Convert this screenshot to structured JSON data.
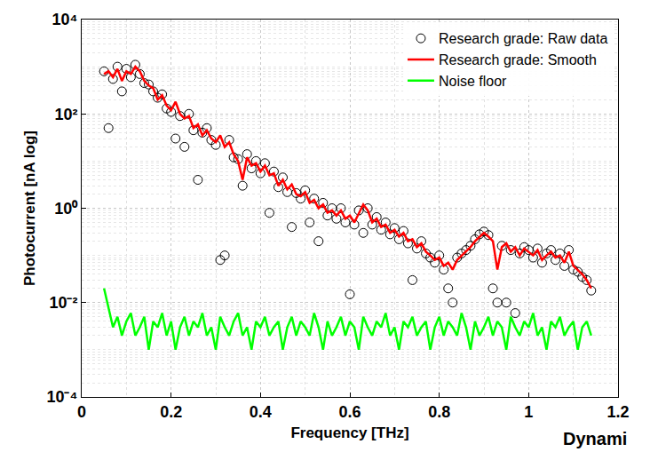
{
  "chart_data": {
    "type": "line",
    "x_label": "Frequency [THz]",
    "y_label": "Photocurrent [nA log]",
    "log": "y",
    "grid": true,
    "legend": "top right",
    "xlim": [
      0,
      1.2
    ],
    "xticks": [
      0,
      0.2,
      0.4,
      0.6,
      0.8,
      1,
      1.2
    ],
    "ylim": [
      0.0001,
      10000
    ],
    "yticks": [
      {
        "value": 0.0001,
        "label": "10⁻⁴"
      },
      {
        "value": 0.01,
        "label": "10⁻²"
      },
      {
        "value": 1,
        "label": "10⁰"
      },
      {
        "value": 100,
        "label": "10²"
      },
      {
        "value": 10000,
        "label": "10⁴"
      }
    ],
    "annotations": [
      {
        "text": "Dynami"
      }
    ],
    "x": [
      0.05,
      0.06,
      0.07,
      0.08,
      0.09,
      0.1,
      0.11,
      0.12,
      0.13,
      0.14,
      0.15,
      0.16,
      0.17,
      0.18,
      0.19,
      0.2,
      0.21,
      0.22,
      0.23,
      0.24,
      0.25,
      0.26,
      0.27,
      0.28,
      0.29,
      0.3,
      0.31,
      0.32,
      0.33,
      0.34,
      0.35,
      0.36,
      0.37,
      0.38,
      0.39,
      0.4,
      0.41,
      0.42,
      0.43,
      0.44,
      0.45,
      0.46,
      0.47,
      0.48,
      0.49,
      0.5,
      0.51,
      0.52,
      0.53,
      0.54,
      0.55,
      0.56,
      0.57,
      0.58,
      0.59,
      0.6,
      0.61,
      0.62,
      0.63,
      0.64,
      0.65,
      0.66,
      0.67,
      0.68,
      0.69,
      0.7,
      0.71,
      0.72,
      0.73,
      0.74,
      0.75,
      0.76,
      0.77,
      0.78,
      0.79,
      0.8,
      0.81,
      0.82,
      0.83,
      0.84,
      0.85,
      0.86,
      0.87,
      0.88,
      0.89,
      0.9,
      0.91,
      0.92,
      0.93,
      0.94,
      0.95,
      0.96,
      0.97,
      0.98,
      0.99,
      1.0,
      1.01,
      1.02,
      1.03,
      1.04,
      1.05,
      1.06,
      1.07,
      1.08,
      1.09,
      1.1,
      1.11,
      1.12,
      1.13,
      1.14
    ],
    "series": [
      {
        "name": "Research grade: Raw data",
        "type": "scatter",
        "marker": "circle-open",
        "color": "#000000",
        "values": [
          800,
          50,
          550,
          1000,
          300,
          900,
          600,
          1100,
          700,
          450,
          420,
          300,
          220,
          260,
          130,
          110,
          30,
          90,
          20,
          100,
          45,
          4,
          40,
          50,
          28,
          22,
          0.08,
          0.1,
          28,
          12,
          11,
          3,
          14,
          7,
          10,
          5.5,
          9,
          0.8,
          6,
          2.8,
          4.5,
          2.2,
          0.4,
          2.1,
          1.6,
          2.4,
          0.5,
          1.6,
          0.2,
          1.3,
          0.7,
          1.0,
          0.6,
          1.0,
          0.5,
          0.015,
          0.45,
          0.9,
          0.3,
          1.0,
          0.45,
          0.65,
          0.35,
          0.5,
          0.28,
          0.38,
          0.22,
          0.33,
          0.18,
          0.03,
          0.14,
          0.2,
          0.11,
          0.09,
          0.07,
          0.1,
          0.05,
          0.02,
          0.01,
          0.09,
          0.11,
          0.13,
          0.16,
          0.22,
          0.28,
          0.32,
          0.27,
          0.02,
          0.01,
          0.16,
          0.01,
          0.13,
          0.006,
          0.11,
          0.15,
          0.13,
          0.09,
          0.14,
          0.07,
          0.11,
          0.13,
          0.08,
          0.11,
          0.06,
          0.13,
          0.05,
          0.045,
          0.035,
          0.03,
          0.018
        ]
      },
      {
        "name": "Research grade: Smooth",
        "type": "line",
        "color": "#ff0000",
        "values": [
          700,
          800,
          600,
          900,
          500,
          800,
          700,
          1000,
          800,
          500,
          400,
          350,
          200,
          250,
          150,
          120,
          180,
          100,
          80,
          90,
          50,
          60,
          35,
          45,
          30,
          25,
          35,
          20,
          25,
          14,
          10,
          4,
          12,
          8,
          9,
          6,
          8,
          5,
          5.5,
          3,
          4,
          2.5,
          3.2,
          2,
          1.8,
          2.2,
          1.3,
          1.5,
          1.0,
          1.2,
          0.8,
          0.9,
          0.7,
          0.9,
          0.6,
          0.7,
          0.5,
          0.8,
          1.2,
          0.9,
          0.5,
          0.6,
          0.4,
          0.45,
          0.3,
          0.35,
          0.25,
          0.3,
          0.2,
          0.22,
          0.15,
          0.18,
          0.12,
          0.1,
          0.08,
          0.09,
          0.06,
          0.07,
          0.05,
          0.08,
          0.1,
          0.12,
          0.15,
          0.2,
          0.25,
          0.3,
          0.25,
          0.2,
          0.05,
          0.15,
          0.18,
          0.12,
          0.15,
          0.1,
          0.14,
          0.12,
          0.1,
          0.13,
          0.08,
          0.1,
          0.12,
          0.09,
          0.1,
          0.07,
          0.12,
          0.06,
          0.05,
          0.04,
          0.03,
          0.02
        ]
      },
      {
        "name": "Noise floor",
        "type": "line",
        "color": "#00ff00",
        "values": [
          0.02,
          0.008,
          0.003,
          0.005,
          0.002,
          0.004,
          0.006,
          0.002,
          0.003,
          0.005,
          0.001,
          0.004,
          0.003,
          0.006,
          0.002,
          0.004,
          0.001,
          0.003,
          0.005,
          0.002,
          0.004,
          0.003,
          0.006,
          0.002,
          0.003,
          0.001,
          0.005,
          0.003,
          0.002,
          0.004,
          0.006,
          0.002,
          0.003,
          0.001,
          0.004,
          0.003,
          0.005,
          0.002,
          0.003,
          0.004,
          0.001,
          0.003,
          0.005,
          0.002,
          0.004,
          0.003,
          0.002,
          0.006,
          0.003,
          0.001,
          0.004,
          0.002,
          0.003,
          0.005,
          0.002,
          0.004,
          0.003,
          0.001,
          0.005,
          0.003,
          0.002,
          0.004,
          0.003,
          0.006,
          0.002,
          0.003,
          0.001,
          0.004,
          0.003,
          0.005,
          0.002,
          0.003,
          0.004,
          0.001,
          0.003,
          0.005,
          0.002,
          0.004,
          0.003,
          0.002,
          0.006,
          0.003,
          0.001,
          0.004,
          0.002,
          0.003,
          0.005,
          0.002,
          0.004,
          0.003,
          0.001,
          0.005,
          0.003,
          0.002,
          0.004,
          0.003,
          0.006,
          0.002,
          0.003,
          0.001,
          0.004,
          0.003,
          0.005,
          0.002,
          0.003,
          0.004,
          0.001,
          0.003,
          0.004,
          0.002
        ]
      }
    ]
  }
}
